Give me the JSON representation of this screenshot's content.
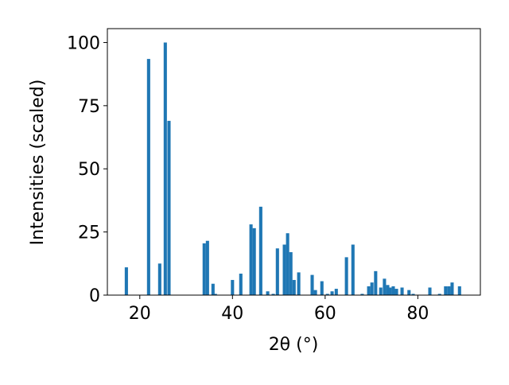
{
  "chart_data": {
    "type": "bar",
    "xlabel": "2θ (°)",
    "ylabel": "Intensities (scaled)",
    "color": "#1f77b4",
    "x": [
      17.1,
      21.9,
      24.3,
      25.5,
      26.3,
      33.9,
      34.6,
      35.8,
      36.3,
      40.0,
      41.8,
      44.0,
      44.7,
      46.1,
      47.6,
      48.8,
      49.7,
      51.2,
      51.9,
      52.6,
      53.3,
      54.3,
      57.2,
      57.9,
      59.3,
      60.5,
      61.5,
      62.4,
      64.6,
      66.0,
      68.0,
      69.4,
      70.1,
      70.9,
      72.0,
      72.8,
      73.5,
      74.0,
      74.7,
      75.4,
      76.6,
      78.1,
      79.0,
      82.6,
      84.7,
      86.0,
      86.7,
      87.4,
      89.0
    ],
    "values": [
      11,
      93.5,
      12.5,
      100,
      69,
      20.5,
      21.5,
      4.5,
      0.5,
      6,
      8.5,
      28,
      26.5,
      35,
      1.5,
      0.5,
      18.5,
      20,
      24.5,
      17,
      6,
      9,
      8,
      2,
      5.5,
      0.5,
      1.5,
      2.5,
      15,
      20,
      0.5,
      3.5,
      5,
      9.5,
      3,
      6.5,
      4,
      3,
      3.5,
      2.5,
      3,
      2,
      0.5,
      3,
      0.5,
      3.5,
      3.5,
      5,
      3.5
    ],
    "xlim": [
      13,
      93.5
    ],
    "ylim": [
      0,
      105.5
    ],
    "xticks": [
      20,
      40,
      60,
      80
    ],
    "yticks": [
      0,
      25,
      50,
      75,
      100
    ]
  }
}
